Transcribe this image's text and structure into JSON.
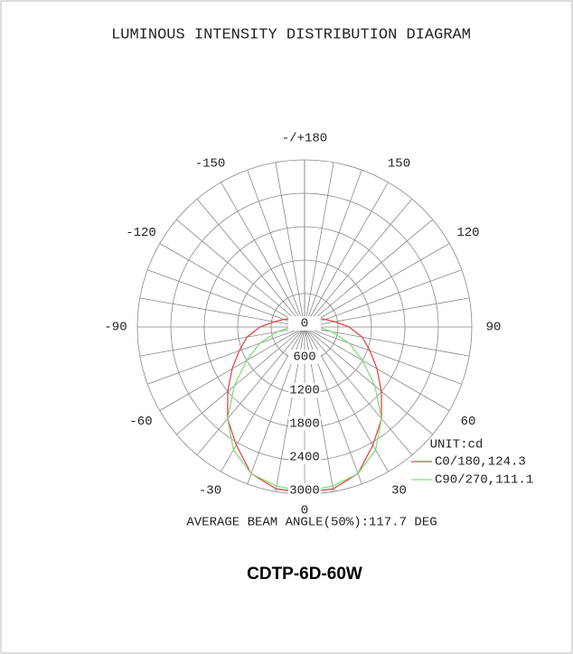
{
  "chart_data": {
    "type": "polar",
    "title": "LUMINOUS INTENSITY DISTRIBUTION DIAGRAM",
    "angles": [
      -180,
      -170,
      -160,
      -150,
      -140,
      -130,
      -120,
      -110,
      -100,
      -90,
      -80,
      -70,
      -60,
      -50,
      -40,
      -30,
      -20,
      -10,
      0,
      10,
      20,
      30,
      40,
      50,
      60,
      70,
      80,
      90,
      100,
      110,
      120,
      130,
      140,
      150,
      160,
      170,
      180
    ],
    "angle_ticks": [
      {
        "value": 180,
        "label": "-/+180"
      },
      150,
      120,
      90,
      60,
      30,
      0,
      -30,
      -60,
      -90,
      -120,
      -150
    ],
    "rlim": [
      0,
      3000
    ],
    "rticks": [
      0,
      600,
      1200,
      1800,
      2400,
      3000
    ],
    "unit": "UNIT:cd",
    "series": [
      {
        "name": "C0/180,124.3",
        "color": "#e8474c",
        "values": [
          90,
          90,
          100,
          120,
          160,
          220,
          300,
          400,
          550,
          800,
          1050,
          1250,
          1500,
          1800,
          2150,
          2450,
          2800,
          2950,
          2970,
          2950,
          2800,
          2450,
          2150,
          1800,
          1500,
          1250,
          1050,
          800,
          550,
          400,
          300,
          220,
          160,
          120,
          100,
          90,
          90
        ]
      },
      {
        "name": "C90/270,111.1",
        "color": "#7ee07a",
        "values": [
          0,
          0,
          0,
          0,
          0,
          10,
          30,
          50,
          100,
          250,
          500,
          850,
          1200,
          1650,
          2150,
          2550,
          2800,
          2900,
          2950,
          2900,
          2800,
          2550,
          2150,
          1650,
          1200,
          850,
          500,
          250,
          100,
          50,
          30,
          10,
          0,
          0,
          0,
          0,
          0
        ]
      }
    ],
    "footer": "AVERAGE BEAM ANGLE(50%):117.7 DEG",
    "model": "CDTP-6D-60W"
  }
}
